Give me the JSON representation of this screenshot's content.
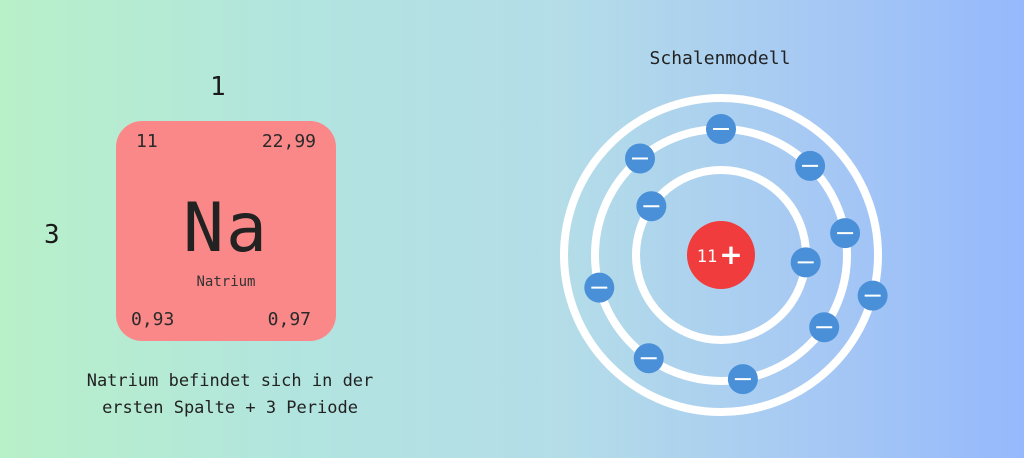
{
  "periodic_table": {
    "group": "1",
    "period": "3",
    "element": {
      "atomic_number": "11",
      "atomic_mass": "22,99",
      "symbol": "Na",
      "name": "Natrium",
      "bottom_left_value": "0,93",
      "bottom_right_value": "0,97",
      "card_color": "#fb8888"
    },
    "caption_lines": [
      "Natrium befindet sich in der",
      "ersten Spalte + 3 Periode"
    ]
  },
  "shell_model": {
    "title": "Schalenmodell",
    "nucleus_label": "11",
    "nucleus_sign": "+",
    "nucleus_color": "#f03c3c",
    "electron_color": "#4a90d9",
    "shell_color": "#ffffff",
    "electron_symbol": "minus-icon",
    "shells": [
      {
        "electrons": 2
      },
      {
        "electrons": 8
      },
      {
        "electrons": 1
      }
    ]
  }
}
